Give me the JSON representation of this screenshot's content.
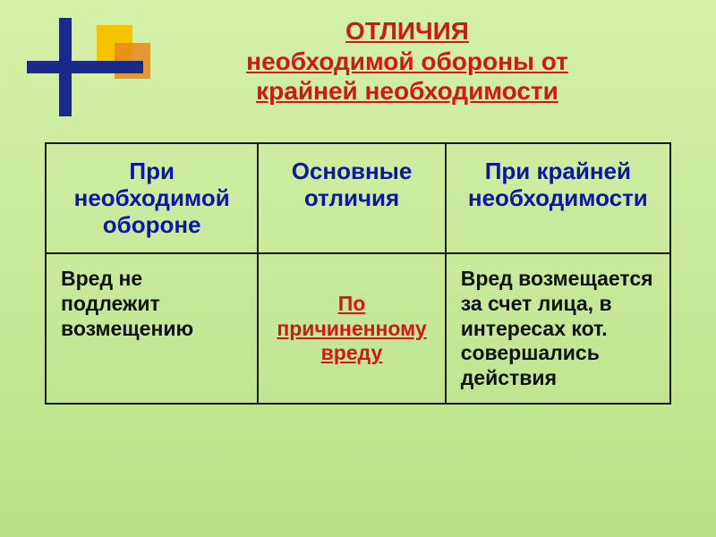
{
  "title": {
    "line1": "ОТЛИЧИЯ",
    "line2": "необходимой обороны от",
    "line3": "крайней необходимости"
  },
  "table": {
    "columns": [
      "При необходимой обороне",
      "Основные отличия",
      "При крайней необходимости"
    ],
    "row": {
      "left": "Вред не подлежит возмещению",
      "center": "По причиненному вреду",
      "right": "Вред возмещается за счет лица, в интересах кот. совершались действия"
    },
    "column_widths": [
      "34%",
      "30%",
      "36%"
    ],
    "header_color": "#0a18a8",
    "center_cell_color": "#d01818",
    "border_color": "#1a1a1a"
  },
  "decoration": {
    "cross_color": "#1a2a8a",
    "square1_color": "#f5c400",
    "square2_color": "#e88a1a"
  },
  "background": {
    "gradient_top": "#d4f0a8",
    "gradient_bottom": "#b8e085"
  }
}
